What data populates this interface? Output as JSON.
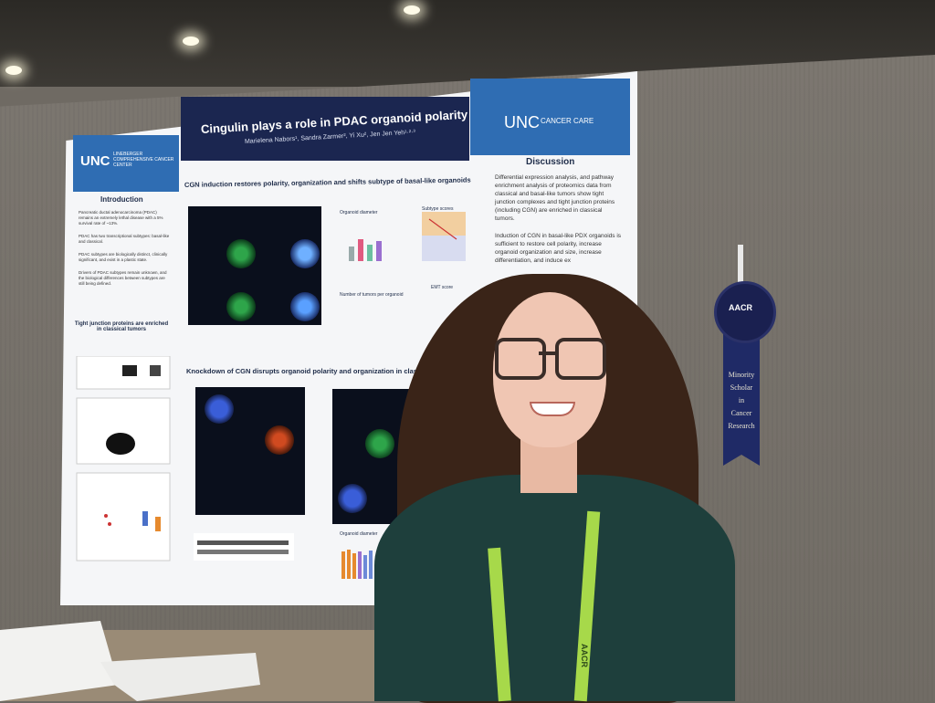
{
  "poster": {
    "logo_left": "UNC",
    "logo_left_sub": "LINEBERGER COMPREHENSIVE CANCER CENTER",
    "title": "Cingulin plays a role in PDAC organoid polarity and subtype",
    "authors": "Marielena Nabors¹, Sandra Zarmer², Yi Xu², Jen Jen Yeh¹·²·³",
    "logo_right": "UNC",
    "logo_right_sub": "CANCER CARE",
    "intro_heading": "Introduction",
    "intro_items": [
      "Pancreatic ductal adenocarcinoma (PDAC) remains an extremely lethal disease with a 5% survival rate of ~13%.",
      "PDAC has two transcriptional subtypes: basal-like and classical.",
      "PDAC subtypes are biologically distinct, clinically significant, and exist in a plastic state.",
      "Drivers of PDAC subtypes remain unknown, and the biological differences between subtypes are still being defined."
    ],
    "tj_heading": "Tight junction proteins are enriched in classical tumors",
    "section1_heading": "CGN induction restores polarity, organization and shifts subtype of basal-like organoids",
    "section2_heading": "Knockdown of CGN disrupts organoid polarity and organization in classical organoids",
    "panel_organoid_diameter": "Organoid diameter",
    "panel_tumors_per_organoid": "Number of tumors per organoid",
    "panel_subtype_scores": "Subtype scores",
    "panel_emt_score": "EMT score",
    "panel_organoid_diameter_2": "Organoid diameter",
    "discussion_heading": "Discussion",
    "discussion_items": [
      "Differential expression analysis, and pathway enrichment analysis of proteomics data from classical and basal-like tumors show tight junction complexes and tight junction proteins (including CGN) are enriched in classical tumors.",
      "Induction of CGN in basal-like PDX organoids is sufficient to restore cell polarity, increase organoid organization and size, increase differentiation, and induce ex"
    ]
  },
  "ribbon": {
    "badge": "AACR",
    "text": [
      "Minority",
      "Scholar",
      "in",
      "Cancer",
      "Research"
    ]
  },
  "lanyard": {
    "text": "AACR"
  }
}
